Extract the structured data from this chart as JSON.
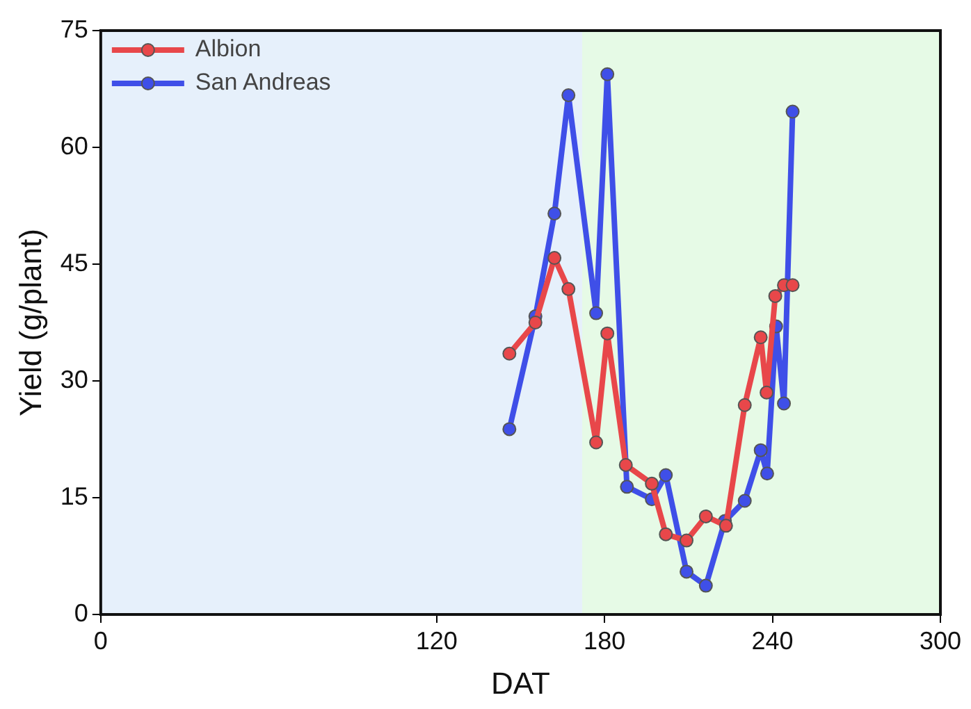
{
  "chart_data": {
    "type": "line",
    "xlabel": "DAT",
    "ylabel": "Yield (g/plant)",
    "xlim": [
      0,
      300
    ],
    "xticks": [
      0,
      120,
      180,
      240,
      300
    ],
    "ylim": [
      0,
      75
    ],
    "yticks": [
      0,
      15,
      30,
      45,
      60,
      75
    ],
    "series": [
      {
        "name": "Albion",
        "color": "#e8474a",
        "x": [
          146,
          155.3,
          162.1,
          167.1,
          177,
          181,
          187.6,
          196.9,
          201.9,
          209.3,
          216.2,
          223.4,
          230.1,
          235.8,
          237.9,
          241,
          244.1,
          247.2
        ],
        "values": [
          33.5,
          37.5,
          45.8,
          41.8,
          22.1,
          36.1,
          19.2,
          16.8,
          10.3,
          9.5,
          12.6,
          11.4,
          26.9,
          35.6,
          28.5,
          40.9,
          42.3,
          42.3
        ]
      },
      {
        "name": "San Andreas",
        "color": "#3f4fe8",
        "x": [
          146,
          155.3,
          162.1,
          167.1,
          177,
          181,
          188,
          196.9,
          201.9,
          209.3,
          216.2,
          223,
          230.1,
          235.8,
          238.1,
          241.3,
          244.1,
          247.2
        ],
        "values": [
          23.8,
          38.3,
          51.5,
          66.7,
          38.7,
          69.4,
          16.4,
          14.8,
          17.9,
          5.5,
          3.7,
          12.0,
          14.6,
          21.1,
          18.1,
          37.0,
          27.1,
          64.6
        ]
      }
    ],
    "bands": [
      {
        "axis": "x",
        "from": 0,
        "to": 172,
        "color": "#e6f0fb"
      },
      {
        "axis": "x",
        "from": 172,
        "to": 300,
        "color": "#e6fae6"
      }
    ],
    "legend": "top left",
    "marker": "circle",
    "line_style": "solid",
    "grid": false
  }
}
